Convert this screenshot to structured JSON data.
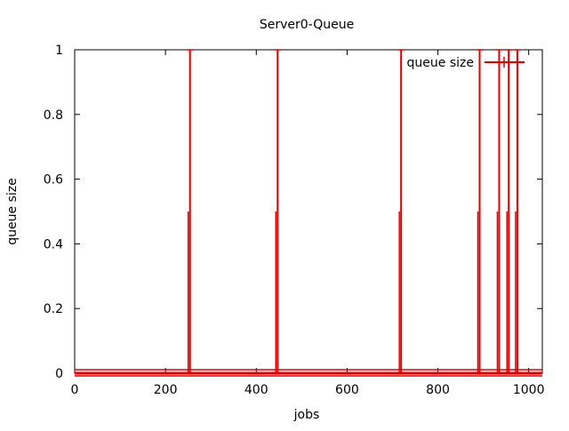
{
  "chart_data": {
    "type": "line",
    "title": "Server0-Queue",
    "xlabel": "jobs",
    "ylabel": "queue size",
    "xlim": [
      0,
      1030
    ],
    "ylim": [
      0,
      1
    ],
    "xticks": [
      0,
      200,
      400,
      600,
      800,
      1000
    ],
    "xtick_labels": [
      "0",
      "200",
      "400",
      "600",
      "800",
      "1000"
    ],
    "yticks": [
      0,
      0.2,
      0.4,
      0.6,
      0.8,
      1
    ],
    "ytick_labels": [
      "0",
      "0.2",
      "0.4",
      "0.6",
      "0.8",
      "1"
    ],
    "grid": false,
    "legend_position": "top-right",
    "series": [
      {
        "name": "queue size",
        "color": "#e00000",
        "style": "linespoints",
        "baseline": 0,
        "spikes": [
          {
            "x": 252,
            "y": 1
          },
          {
            "x": 445,
            "y": 1
          },
          {
            "x": 717,
            "y": 1
          },
          {
            "x": 890,
            "y": 1
          },
          {
            "x": 933,
            "y": 1
          },
          {
            "x": 954,
            "y": 1
          },
          {
            "x": 973,
            "y": 1
          }
        ]
      }
    ]
  }
}
